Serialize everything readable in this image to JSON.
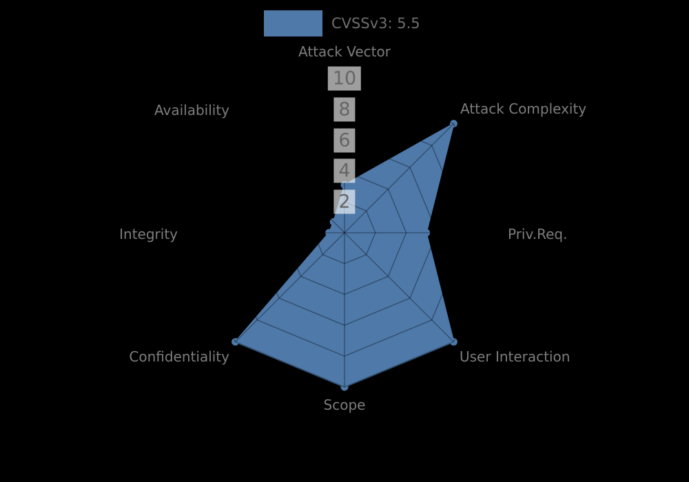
{
  "legend": {
    "label": "CVSSv3: 5.5"
  },
  "chart_data": {
    "type": "radar",
    "title": "CVSSv3: 5.5",
    "axes": [
      "Attack Vector",
      "Attack Complexity",
      "Priv.Req.",
      "User Interaction",
      "Scope",
      "Confidentiality",
      "Integrity",
      "Availability"
    ],
    "values": [
      3.1,
      10,
      5.3,
      10,
      10,
      10,
      1,
      1
    ],
    "ticks": [
      2,
      4,
      6,
      8,
      10
    ],
    "rmax": 10,
    "grid": true,
    "legend_position": "top-center",
    "series_color": "#4e79a9",
    "grid_color": "rgba(0,0,0,0.38)",
    "label_color": "#7d7d7d",
    "tick_text_color": "#666666",
    "tick_box_color": "rgba(255,255,255,0.62)",
    "background": "#000000"
  }
}
